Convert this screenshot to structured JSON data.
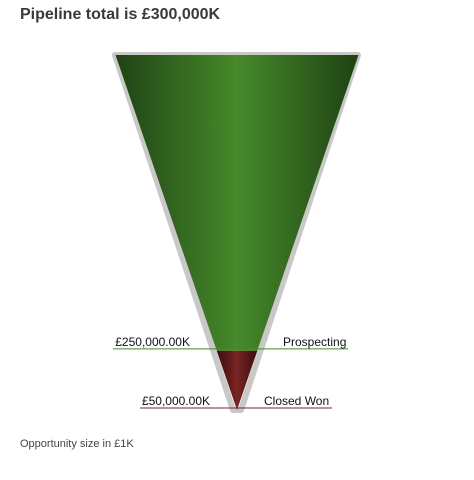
{
  "chart_data": {
    "type": "funnel",
    "title": "Pipeline total is £300,000K",
    "footnote": "Opportunity size in £1K",
    "stages": [
      {
        "name": "Prospecting",
        "value": 250000,
        "value_label": "£250,000.00K",
        "color": "#468a2a",
        "edge_color": "#1f4214"
      },
      {
        "name": "Closed Won",
        "value": 50000,
        "value_label": "£50,000.00K",
        "color": "#7a2424",
        "edge_color": "#3a0c0c"
      }
    ],
    "total": 300000
  }
}
